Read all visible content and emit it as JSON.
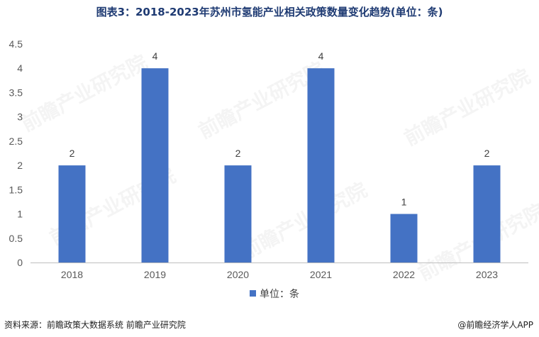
{
  "title": "图表3：2018-2023年苏州市氢能产业相关政策数量变化趋势(单位：条)",
  "chart_data": {
    "type": "bar",
    "categories": [
      "2018",
      "2019",
      "2020",
      "2021",
      "2022",
      "2023"
    ],
    "series": [
      {
        "name": "单位：条",
        "values": [
          2,
          4,
          2,
          4,
          1,
          2
        ],
        "color": "#4472c4"
      }
    ],
    "ylim": [
      0,
      4.5
    ],
    "yticks": [
      "0",
      "0.5",
      "1",
      "1.5",
      "2",
      "2.5",
      "3",
      "3.5",
      "4",
      "4.5"
    ],
    "data_labels": [
      "2",
      "4",
      "2",
      "4",
      "1",
      "2"
    ],
    "grid": false,
    "legend_position": "bottom"
  },
  "source": "资料来源：前瞻政策大数据系统 前瞻产业研究院",
  "brand": "@前瞻经济学人APP",
  "watermark": "前瞻产业研究院"
}
